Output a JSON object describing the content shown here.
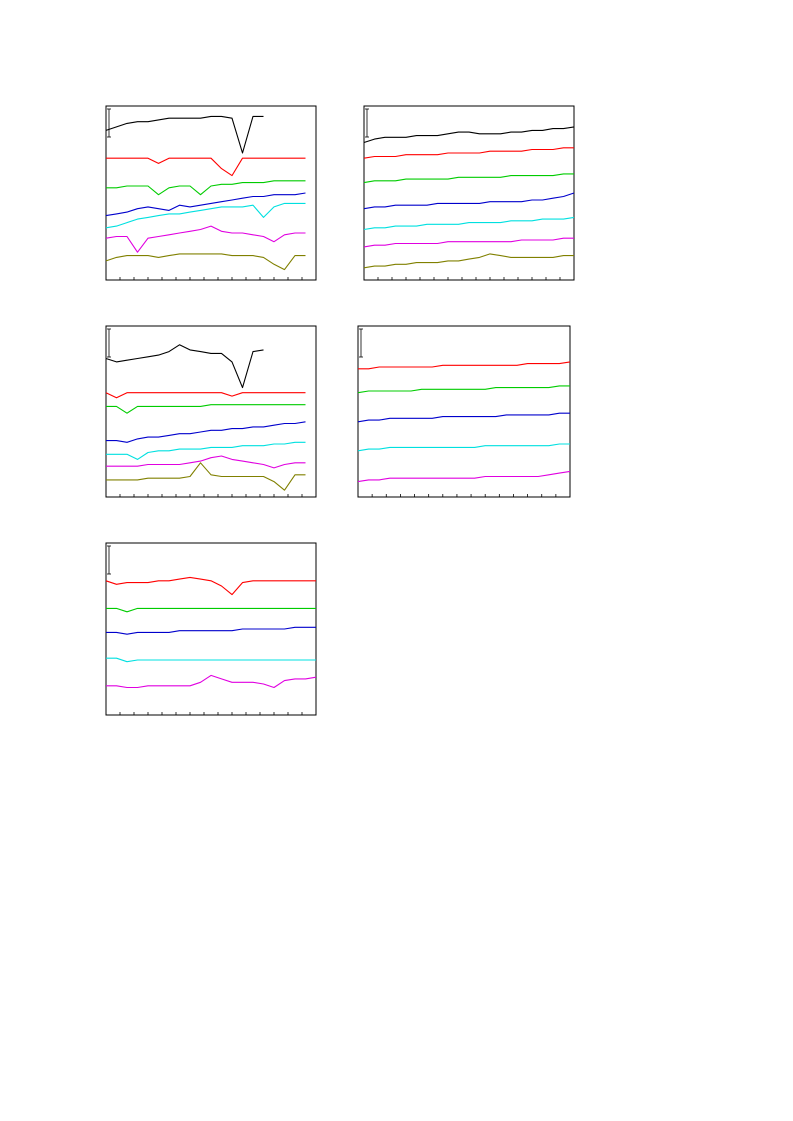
{
  "chart_data": [
    {
      "type": "line",
      "x": [
        0,
        5,
        10,
        15,
        20,
        25,
        30,
        35,
        40,
        45,
        50,
        55,
        60,
        65,
        70,
        75,
        80,
        85,
        90,
        95,
        100
      ],
      "xlim": [
        0,
        100
      ],
      "ylim": [
        0,
        100
      ],
      "series": [
        {
          "color": "#000000",
          "values": [
            86,
            88,
            90,
            91,
            91,
            92,
            93,
            93,
            93,
            93,
            94,
            94,
            93,
            73,
            94,
            94,
            null,
            null,
            null,
            null,
            null
          ]
        },
        {
          "color": "#ff0000",
          "values": [
            70,
            70,
            70,
            70,
            70,
            67,
            70,
            70,
            70,
            70,
            70,
            64,
            60,
            70,
            70,
            70,
            70,
            70,
            70,
            70,
            null
          ]
        },
        {
          "color": "#00cc00",
          "values": [
            53,
            53,
            54,
            54,
            54,
            49,
            53,
            54,
            54,
            49,
            54,
            55,
            55,
            56,
            56,
            56,
            57,
            57,
            57,
            57,
            null
          ]
        },
        {
          "color": "#0000cc",
          "values": [
            37,
            38,
            39,
            41,
            42,
            41,
            40,
            43,
            42,
            43,
            44,
            45,
            46,
            47,
            48,
            48,
            49,
            49,
            49,
            50,
            null
          ]
        },
        {
          "color": "#00e0e0",
          "values": [
            30,
            31,
            33,
            35,
            36,
            37,
            38,
            38,
            39,
            40,
            41,
            42,
            42,
            42,
            43,
            36,
            42,
            44,
            44,
            44,
            null
          ]
        },
        {
          "color": "#e000e0",
          "values": [
            24,
            25,
            25,
            16,
            24,
            25,
            26,
            27,
            28,
            29,
            31,
            28,
            27,
            27,
            26,
            25,
            22,
            26,
            27,
            27,
            null
          ]
        },
        {
          "color": "#808000",
          "values": [
            11,
            13,
            14,
            14,
            14,
            13,
            14,
            15,
            15,
            15,
            15,
            15,
            14,
            14,
            14,
            13,
            9,
            6,
            14,
            14,
            null
          ]
        }
      ]
    },
    {
      "type": "line",
      "x": [
        0,
        5,
        10,
        15,
        20,
        25,
        30,
        35,
        40,
        45,
        50,
        55,
        60,
        65,
        70,
        75,
        80,
        85,
        90,
        95,
        100
      ],
      "xlim": [
        0,
        100
      ],
      "ylim": [
        0,
        100
      ],
      "series": [
        {
          "color": "#000000",
          "values": [
            79,
            81,
            82,
            82,
            82,
            83,
            83,
            83,
            84,
            85,
            85,
            84,
            84,
            84,
            85,
            85,
            86,
            86,
            87,
            87,
            88
          ]
        },
        {
          "color": "#ff0000",
          "values": [
            70,
            71,
            71,
            71,
            72,
            72,
            72,
            72,
            73,
            73,
            73,
            73,
            74,
            74,
            74,
            74,
            75,
            75,
            75,
            76,
            76
          ]
        },
        {
          "color": "#00cc00",
          "values": [
            56,
            57,
            57,
            57,
            58,
            58,
            58,
            58,
            58,
            59,
            59,
            59,
            59,
            59,
            60,
            60,
            60,
            60,
            60,
            61,
            61
          ]
        },
        {
          "color": "#0000cc",
          "values": [
            41,
            42,
            42,
            43,
            43,
            43,
            43,
            44,
            44,
            44,
            44,
            44,
            45,
            45,
            45,
            45,
            46,
            46,
            47,
            48,
            50
          ]
        },
        {
          "color": "#00e0e0",
          "values": [
            29,
            30,
            30,
            31,
            31,
            31,
            32,
            32,
            32,
            32,
            33,
            33,
            33,
            33,
            34,
            34,
            34,
            35,
            35,
            35,
            36
          ]
        },
        {
          "color": "#e000e0",
          "values": [
            19,
            20,
            20,
            21,
            21,
            21,
            21,
            21,
            22,
            22,
            22,
            22,
            22,
            22,
            22,
            23,
            23,
            23,
            23,
            24,
            24
          ]
        },
        {
          "color": "#808000",
          "values": [
            7,
            8,
            8,
            9,
            9,
            10,
            10,
            10,
            11,
            11,
            12,
            13,
            15,
            14,
            13,
            13,
            13,
            13,
            13,
            14,
            14
          ]
        }
      ]
    },
    {
      "type": "line",
      "x": [
        0,
        5,
        10,
        15,
        20,
        25,
        30,
        35,
        40,
        45,
        50,
        55,
        60,
        65,
        70,
        75,
        80,
        85,
        90,
        95,
        100
      ],
      "xlim": [
        0,
        100
      ],
      "ylim": [
        0,
        100
      ],
      "series": [
        {
          "color": "#000000",
          "values": [
            81,
            79,
            80,
            81,
            82,
            83,
            85,
            89,
            86,
            85,
            84,
            84,
            79,
            64,
            85,
            86,
            null,
            null,
            null,
            null,
            null
          ]
        },
        {
          "color": "#ff0000",
          "values": [
            61,
            58,
            61,
            61,
            61,
            61,
            61,
            61,
            61,
            61,
            61,
            61,
            59,
            61,
            61,
            61,
            61,
            61,
            61,
            61,
            null
          ]
        },
        {
          "color": "#00cc00",
          "values": [
            53,
            53,
            49,
            53,
            53,
            53,
            53,
            53,
            53,
            53,
            54,
            54,
            54,
            54,
            54,
            54,
            54,
            54,
            54,
            54,
            null
          ]
        },
        {
          "color": "#0000cc",
          "values": [
            33,
            33,
            32,
            34,
            35,
            35,
            36,
            37,
            37,
            38,
            39,
            39,
            40,
            40,
            41,
            41,
            42,
            43,
            43,
            44,
            null
          ]
        },
        {
          "color": "#00e0e0",
          "values": [
            25,
            25,
            25,
            22,
            26,
            27,
            27,
            28,
            28,
            28,
            29,
            29,
            29,
            30,
            30,
            30,
            31,
            31,
            32,
            32,
            null
          ]
        },
        {
          "color": "#e000e0",
          "values": [
            18,
            18,
            18,
            18,
            19,
            19,
            19,
            19,
            20,
            21,
            23,
            24,
            22,
            21,
            20,
            19,
            17,
            19,
            20,
            20,
            null
          ]
        },
        {
          "color": "#808000",
          "values": [
            10,
            10,
            10,
            10,
            11,
            11,
            11,
            11,
            12,
            20,
            13,
            12,
            12,
            12,
            12,
            12,
            9,
            4,
            13,
            13,
            null
          ]
        }
      ]
    },
    {
      "type": "line",
      "x": [
        0,
        5,
        10,
        15,
        20,
        25,
        30,
        35,
        40,
        45,
        50,
        55,
        60,
        65,
        70,
        75,
        80,
        85,
        90,
        95,
        100
      ],
      "xlim": [
        0,
        100
      ],
      "ylim": [
        0,
        100
      ],
      "series": [
        {
          "color": "#ff0000",
          "values": [
            75,
            75,
            76,
            76,
            76,
            76,
            76,
            76,
            77,
            77,
            77,
            77,
            77,
            77,
            77,
            77,
            78,
            78,
            78,
            78,
            79
          ]
        },
        {
          "color": "#00cc00",
          "values": [
            61,
            62,
            62,
            62,
            62,
            62,
            63,
            63,
            63,
            63,
            63,
            63,
            63,
            64,
            64,
            64,
            64,
            64,
            64,
            65,
            65
          ]
        },
        {
          "color": "#0000cc",
          "values": [
            44,
            45,
            45,
            46,
            46,
            46,
            46,
            46,
            47,
            47,
            47,
            47,
            47,
            47,
            48,
            48,
            48,
            48,
            48,
            49,
            49
          ]
        },
        {
          "color": "#00e0e0",
          "values": [
            27,
            28,
            28,
            29,
            29,
            29,
            29,
            29,
            29,
            29,
            29,
            29,
            30,
            30,
            30,
            30,
            30,
            30,
            30,
            31,
            31
          ]
        },
        {
          "color": "#e000e0",
          "values": [
            9,
            10,
            10,
            11,
            11,
            11,
            11,
            11,
            11,
            11,
            11,
            11,
            12,
            12,
            12,
            12,
            12,
            12,
            13,
            14,
            15
          ]
        }
      ]
    },
    {
      "type": "line",
      "x": [
        0,
        5,
        10,
        15,
        20,
        25,
        30,
        35,
        40,
        45,
        50,
        55,
        60,
        65,
        70,
        75,
        80,
        85,
        90,
        95,
        100
      ],
      "xlim": [
        0,
        100
      ],
      "ylim": [
        0,
        100
      ],
      "series": [
        {
          "color": "#ff0000",
          "values": [
            78,
            76,
            77,
            77,
            77,
            78,
            78,
            79,
            80,
            79,
            78,
            75,
            70,
            77,
            78,
            78,
            78,
            78,
            78,
            78,
            78
          ]
        },
        {
          "color": "#00cc00",
          "values": [
            62,
            62,
            60,
            62,
            62,
            62,
            62,
            62,
            62,
            62,
            62,
            62,
            62,
            62,
            62,
            62,
            62,
            62,
            62,
            62,
            62
          ]
        },
        {
          "color": "#0000cc",
          "values": [
            48,
            48,
            47,
            48,
            48,
            48,
            48,
            49,
            49,
            49,
            49,
            49,
            49,
            50,
            50,
            50,
            50,
            50,
            51,
            51,
            51
          ]
        },
        {
          "color": "#00e0e0",
          "values": [
            33,
            33,
            31,
            32,
            32,
            32,
            32,
            32,
            32,
            32,
            32,
            32,
            32,
            32,
            32,
            32,
            32,
            32,
            32,
            32,
            32
          ]
        },
        {
          "color": "#e000e0",
          "values": [
            17,
            17,
            16,
            16,
            17,
            17,
            17,
            17,
            17,
            19,
            23,
            21,
            19,
            19,
            19,
            18,
            16,
            20,
            21,
            21,
            22
          ]
        }
      ]
    }
  ]
}
